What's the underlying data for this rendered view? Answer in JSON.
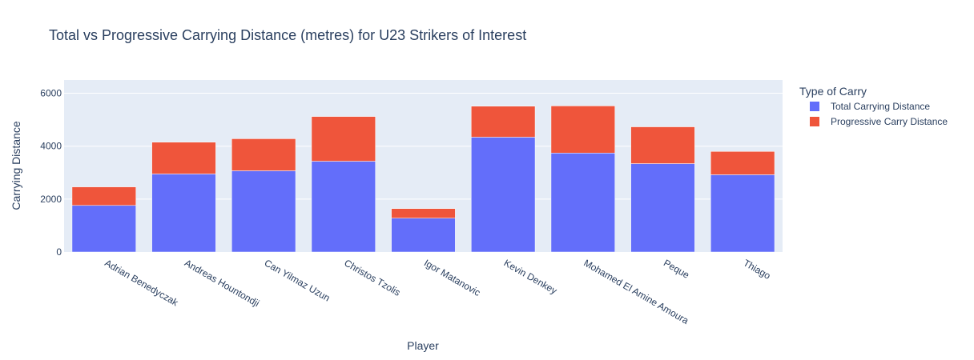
{
  "chart_data": {
    "type": "bar",
    "barmode": "stack",
    "title": "Total vs Progressive Carrying Distance (metres) for U23 Strikers of Interest",
    "xlabel": "Player",
    "ylabel": "Carrying Distance",
    "ylim": [
      0,
      6500
    ],
    "yticks": [
      0,
      2000,
      4000,
      6000
    ],
    "grid": true,
    "legend_title": "Type of Carry",
    "legend_position": "right",
    "categories": [
      "Adrian Benedyczak",
      "Andreas Hountondji",
      "Can Yilmaz Uzun",
      "Christos Tzolis",
      "Igor Matanovic",
      "Kevin Denkey",
      "Mohamed El Amine Amoura",
      "Peque",
      "Thiago"
    ],
    "series": [
      {
        "name": "Total Carrying Distance",
        "color": "#636efa",
        "values": [
          1760,
          2950,
          3070,
          3430,
          1280,
          4340,
          3740,
          3340,
          2920
        ]
      },
      {
        "name": "Progressive Carry Distance",
        "color": "#ef553b",
        "values": [
          700,
          1200,
          1210,
          1690,
          360,
          1170,
          1780,
          1390,
          880
        ]
      }
    ]
  }
}
